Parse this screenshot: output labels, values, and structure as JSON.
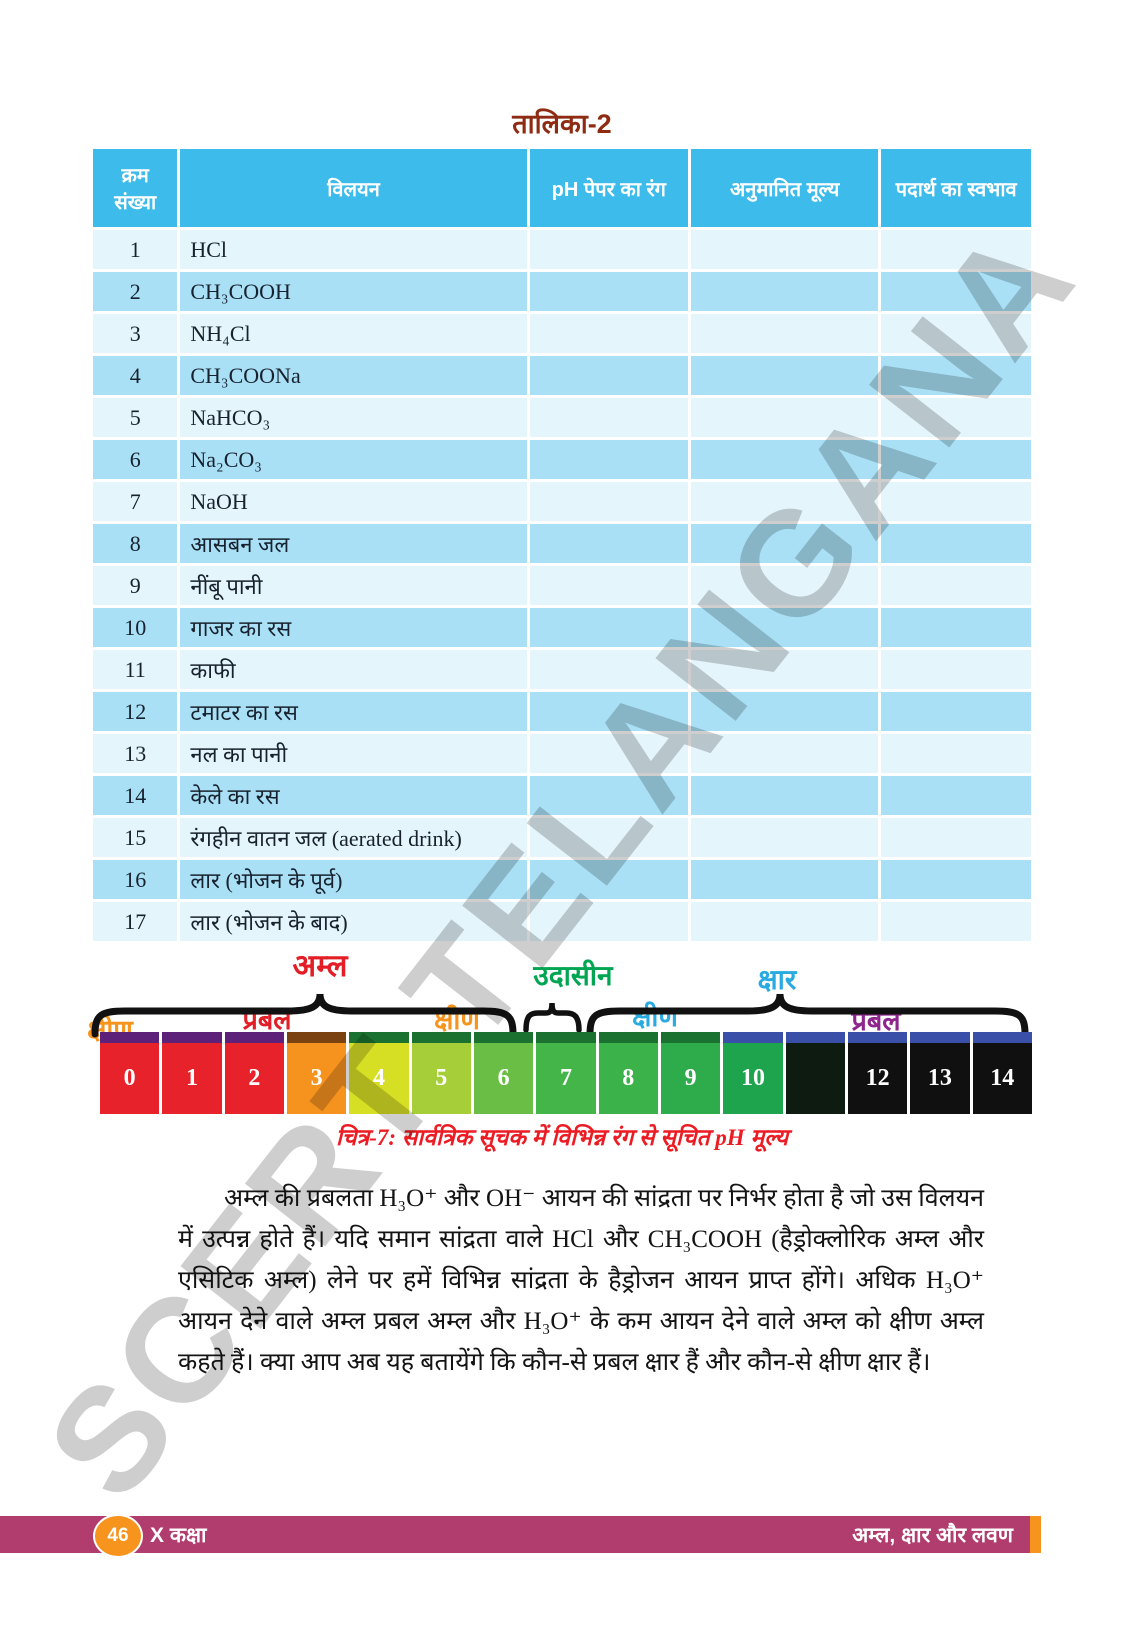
{
  "page": {
    "title": "तालिका-2"
  },
  "watermark": "SCERT TELANGANA",
  "table": {
    "headers": [
      "क्रम संख्या",
      "विलयन",
      "pH पेपर का रंग",
      "अनुमानित मूल्य",
      "पदार्थ का स्वभाव"
    ],
    "rows": [
      {
        "num": "1",
        "solution": "HCl"
      },
      {
        "num": "2",
        "solution": "CH₃COOH"
      },
      {
        "num": "3",
        "solution": "NH₄Cl"
      },
      {
        "num": "4",
        "solution": "CH₃COONa"
      },
      {
        "num": "5",
        "solution": "NaHCO₃"
      },
      {
        "num": "6",
        "solution": "Na₂CO₃"
      },
      {
        "num": "7",
        "solution": "NaOH"
      },
      {
        "num": "8",
        "solution": "आसबन जल"
      },
      {
        "num": "9",
        "solution": "नींबू पानी"
      },
      {
        "num": "10",
        "solution": "गाजर का रस"
      },
      {
        "num": "11",
        "solution": "काफी"
      },
      {
        "num": "12",
        "solution": "टमाटर का रस"
      },
      {
        "num": "13",
        "solution": "नल का पानी"
      },
      {
        "num": "14",
        "solution": "केले का रस"
      },
      {
        "num": "15",
        "solution": "रंगहीन वातन जल (aerated drink)"
      },
      {
        "num": "16",
        "solution": "लार (भोजन के पूर्व)"
      },
      {
        "num": "17",
        "solution": "लार (भोजन के बाद)"
      }
    ],
    "empty_cell": ""
  },
  "ph_scale": {
    "group_labels": [
      {
        "text": "अम्ल",
        "color": "#E31E26"
      },
      {
        "text": "उदासीन",
        "color": "#00A651"
      },
      {
        "text": "क्षार",
        "color": "#29ABE2"
      }
    ],
    "sub_labels": [
      {
        "text": "क्षीण",
        "color": "#F7941D"
      },
      {
        "text": "प्रबल",
        "color": "#E31E26"
      },
      {
        "text": "क्षीण",
        "color": "#F7941D"
      },
      {
        "text": "क्षीण",
        "color": "#29ABE2"
      },
      {
        "text": "प्रबल",
        "color": "#8E258D"
      }
    ],
    "boxes": [
      {
        "label": "0",
        "color": "#E8222A",
        "strip": "#5E2179"
      },
      {
        "label": "1",
        "color": "#E8222A",
        "strip": "#5E2179"
      },
      {
        "label": "2",
        "color": "#E8222A",
        "strip": "#5E2179"
      },
      {
        "label": "3",
        "color": "#F6921E",
        "strip": "#7A4111"
      },
      {
        "label": "4",
        "color": "#D7DF25",
        "strip": "#1B7230"
      },
      {
        "label": "5",
        "color": "#A6CE39",
        "strip": "#1B7230"
      },
      {
        "label": "6",
        "color": "#6ABD45",
        "strip": "#1B7230"
      },
      {
        "label": "7",
        "color": "#44B649",
        "strip": "#1B7230"
      },
      {
        "label": "8",
        "color": "#3BB24A",
        "strip": "#1B7230"
      },
      {
        "label": "9",
        "color": "#2EAC4B",
        "strip": "#1B7230"
      },
      {
        "label": "10",
        "color": "#1FA44E",
        "strip": "#3A50A8"
      },
      {
        "label": "",
        "color": "#0D1B10",
        "strip": "#3A50A8"
      },
      {
        "label": "12",
        "color": "#101010",
        "strip": "#3A50A8"
      },
      {
        "label": "13",
        "color": "#101010",
        "strip": "#3A50A8"
      },
      {
        "label": "14",
        "color": "#101010",
        "strip": "#3A50A8"
      }
    ]
  },
  "figure": {
    "caption": "चित्र-7: सार्वत्रिक सूचक में विभिन्न रंग से सूचित pH मूल्य"
  },
  "paragraph": "अम्ल की प्रबलता H₃O⁺ और OH⁻ आयन की सांद्रता पर निर्भर होता है जो उस विलयन में उत्पन्न होते हैं। यदि समान सांद्रता वाले HCl और CH₃COOH (हैड्रोक्लोरिक अम्ल और एसिटिक अम्ल) लेने पर हमें विभिन्न सांद्रता के हैड्रोजन आयन प्राप्त होंगे। अधिक H₃O⁺ आयन देने वाले अम्ल प्रबल अम्ल और H₃O⁺ के कम आयन देने वाले अम्ल को क्षीण अम्ल कहते हैं। क्या आप अब यह बतायेंगे कि कौन-से प्रबल क्षार हैं और कौन-से क्षीण क्षार हैं।",
  "footer": {
    "page_number": "46",
    "class_label": "X कक्षा",
    "chapter_title": "अम्ल, क्षार और लवण",
    "bar_color": "#B13C6E",
    "accent_color": "#F7941D"
  }
}
